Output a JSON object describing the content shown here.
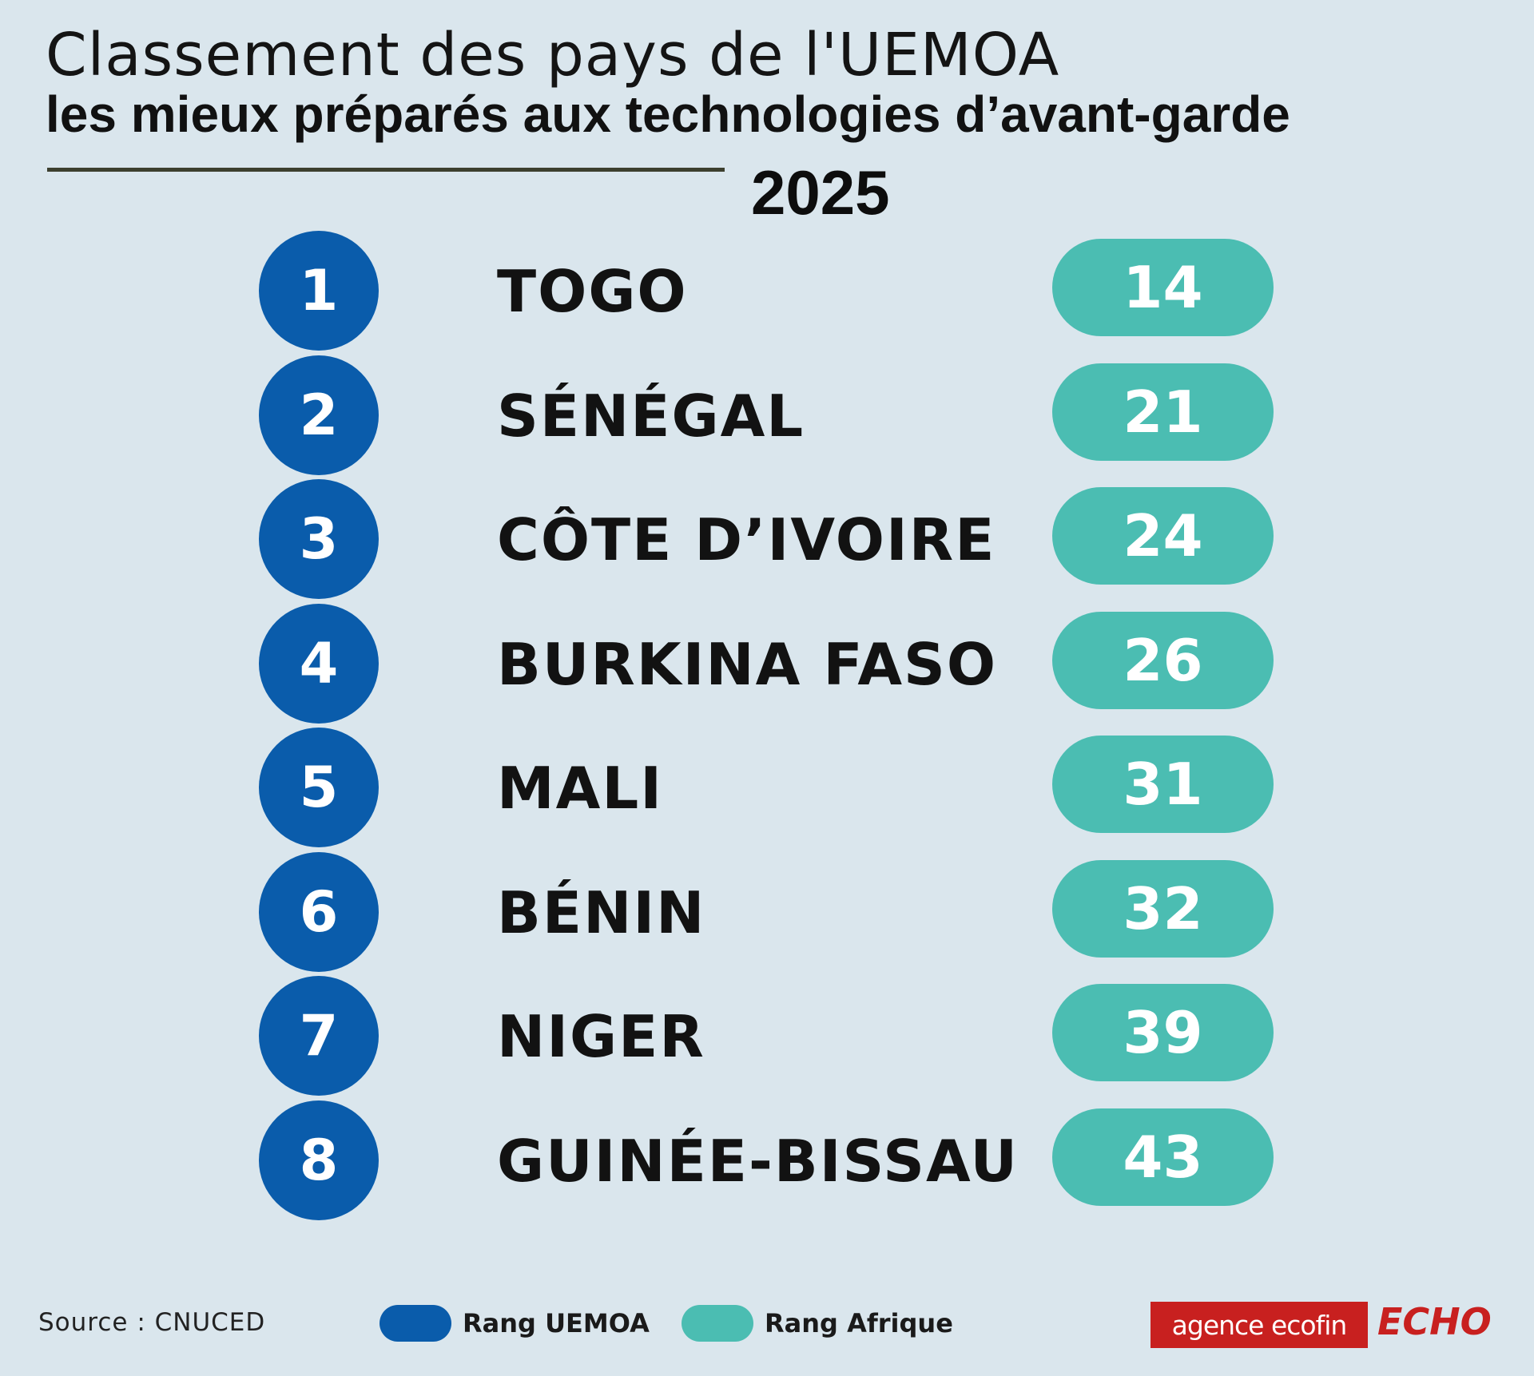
{
  "header": {
    "title": "Classement des pays de l'UEMOA",
    "subtitle": "les mieux préparés aux technologies d’avant-garde",
    "year": "2025"
  },
  "chart_data": {
    "type": "table",
    "title": "Classement des pays de l'UEMOA",
    "subtitle": "les mieux préparés aux technologies d’avant-garde",
    "year": "2025",
    "columns": [
      "Rang UEMOA",
      "Pays",
      "Rang Afrique"
    ],
    "rows": [
      {
        "rank_uemoa": "1",
        "country": "TOGO",
        "rank_afrique": "14"
      },
      {
        "rank_uemoa": "2",
        "country": "SÉNÉGAL",
        "rank_afrique": "21"
      },
      {
        "rank_uemoa": "3",
        "country": "CÔTE D’IVOIRE",
        "rank_afrique": "24"
      },
      {
        "rank_uemoa": "4",
        "country": "BURKINA FASO",
        "rank_afrique": "26"
      },
      {
        "rank_uemoa": "5",
        "country": "MALI",
        "rank_afrique": "31"
      },
      {
        "rank_uemoa": "6",
        "country": "BÉNIN",
        "rank_afrique": "32"
      },
      {
        "rank_uemoa": "7",
        "country": "NIGER",
        "rank_afrique": "39"
      },
      {
        "rank_uemoa": "8",
        "country": "GUINÉE-BISSAU",
        "rank_afrique": "43"
      }
    ],
    "legend": [
      {
        "label": "Rang UEMOA",
        "color": "#0a5cab"
      },
      {
        "label": "Rang Afrique",
        "color": "#4bbdb2"
      }
    ]
  },
  "footer": {
    "source": "Source : CNUCED",
    "logo_primary": "agence ecofin",
    "logo_secondary": "ECHO"
  },
  "colors": {
    "background": "#dae6ed",
    "rank_uemoa": "#0a5cab",
    "rank_afrique": "#4bbdb2",
    "brand_red": "#c8201f"
  }
}
